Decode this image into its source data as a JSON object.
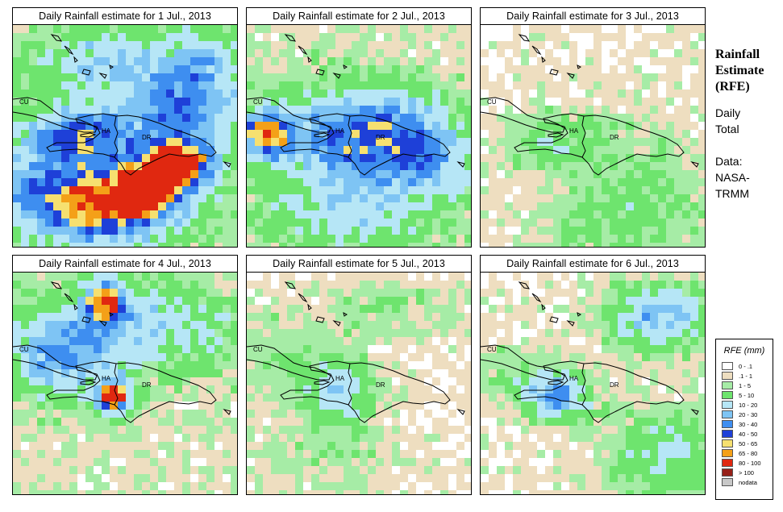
{
  "panels": [
    {
      "title": "Daily Rainfall estimate for  1 Jul., 2013"
    },
    {
      "title": "Daily Rainfall estimate for  2 Jul., 2013"
    },
    {
      "title": "Daily Rainfall estimate for  3 Jul., 2013"
    },
    {
      "title": "Daily Rainfall estimate for  4 Jul., 2013"
    },
    {
      "title": "Daily Rainfall estimate for  5 Jul., 2013"
    },
    {
      "title": "Daily Rainfall estimate for  6 Jul., 2013"
    }
  ],
  "map_labels": {
    "cuba": "CU",
    "haiti": "HA",
    "dominican_republic": "DR"
  },
  "side_panel": {
    "title_line1": "Rainfall",
    "title_line2": "Estimate",
    "title_line3": "(RFE)",
    "period_line1": "Daily",
    "period_line2": "Total",
    "source_line1": "Data:",
    "source_line2": "NASA-",
    "source_line3": "TRMM"
  },
  "legend": {
    "title": "RFE (mm)",
    "items": [
      {
        "label": "0 - .1",
        "color": "#ffffff"
      },
      {
        "label": ".1 - 1",
        "color": "#eedec0"
      },
      {
        "label": "1 - 5",
        "color": "#a6eca6"
      },
      {
        "label": "5 - 10",
        "color": "#6ee46e"
      },
      {
        "label": "10 - 20",
        "color": "#b6e6f6"
      },
      {
        "label": "20 - 30",
        "color": "#7ec4f4"
      },
      {
        "label": "30 - 40",
        "color": "#3e8ef0"
      },
      {
        "label": "40 - 50",
        "color": "#1e40d8"
      },
      {
        "label": "50 - 65",
        "color": "#f6e070"
      },
      {
        "label": "65 - 80",
        "color": "#f4a018"
      },
      {
        "label": "80 - 100",
        "color": "#e02810"
      },
      {
        "label": "> 100",
        "color": "#962018"
      },
      {
        "label": "nodata",
        "color": "#c8c8c8"
      }
    ]
  }
}
